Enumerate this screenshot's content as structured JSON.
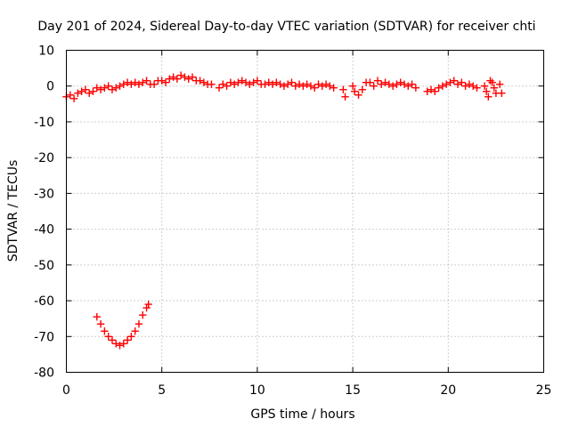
{
  "chart_data": {
    "type": "scatter",
    "title": "Day 201 of 2024, Sidereal Day-to-day VTEC variation (SDTVAR) for receiver chti",
    "xlabel": "GPS time / hours",
    "ylabel": "SDTVAR / TECUs",
    "xlim": [
      0,
      25
    ],
    "ylim": [
      -80,
      10
    ],
    "xticks": [
      0,
      5,
      10,
      15,
      20,
      25
    ],
    "yticks": [
      10,
      0,
      -10,
      -20,
      -30,
      -40,
      -50,
      -60,
      -70,
      -80
    ],
    "grid": true,
    "marker": "plus",
    "color": "#ff0000",
    "series": [
      {
        "points": [
          [
            0.0,
            -3
          ],
          [
            0.2,
            -2.5
          ],
          [
            0.4,
            -3.5
          ],
          [
            0.6,
            -2
          ],
          [
            0.8,
            -1.5
          ],
          [
            1.0,
            -1
          ],
          [
            1.2,
            -2
          ],
          [
            1.4,
            -1.5
          ],
          [
            1.6,
            -0.5
          ],
          [
            1.8,
            -1
          ],
          [
            2.0,
            -0.5
          ],
          [
            2.2,
            0
          ],
          [
            2.4,
            -1
          ],
          [
            2.6,
            -0.5
          ],
          [
            2.8,
            0
          ],
          [
            3.0,
            0.5
          ],
          [
            3.2,
            1
          ],
          [
            3.4,
            0.5
          ],
          [
            3.6,
            1
          ],
          [
            3.8,
            0.5
          ],
          [
            4.0,
            1
          ],
          [
            4.2,
            1.5
          ],
          [
            4.4,
            0.5
          ],
          [
            4.6,
            0.5
          ],
          [
            4.8,
            1.5
          ],
          [
            5.0,
            1.5
          ],
          [
            5.2,
            1
          ],
          [
            5.4,
            2
          ],
          [
            5.6,
            2.5
          ],
          [
            5.8,
            2
          ],
          [
            6.0,
            3
          ],
          [
            6.2,
            2.5
          ],
          [
            6.4,
            2
          ],
          [
            6.6,
            2.5
          ],
          [
            6.8,
            1.5
          ],
          [
            7.0,
            1.5
          ],
          [
            7.2,
            1
          ],
          [
            7.4,
            0.5
          ],
          [
            7.6,
            0.5
          ],
          [
            8.0,
            -0.5
          ],
          [
            8.2,
            0.5
          ],
          [
            8.4,
            0
          ],
          [
            8.6,
            1
          ],
          [
            8.8,
            0.5
          ],
          [
            9.0,
            1
          ],
          [
            9.2,
            1.5
          ],
          [
            9.4,
            1
          ],
          [
            9.6,
            0.5
          ],
          [
            9.8,
            1
          ],
          [
            10.0,
            1.5
          ],
          [
            10.2,
            0.5
          ],
          [
            10.4,
            0.5
          ],
          [
            10.6,
            1
          ],
          [
            10.8,
            0.5
          ],
          [
            11.0,
            1
          ],
          [
            11.2,
            0.5
          ],
          [
            11.4,
            0
          ],
          [
            11.6,
            0.5
          ],
          [
            11.8,
            1
          ],
          [
            12.0,
            0
          ],
          [
            12.2,
            0.5
          ],
          [
            12.4,
            0
          ],
          [
            12.6,
            0.5
          ],
          [
            12.8,
            0
          ],
          [
            13.0,
            -0.5
          ],
          [
            13.2,
            0.5
          ],
          [
            13.4,
            0
          ],
          [
            13.6,
            0.5
          ],
          [
            13.8,
            0
          ],
          [
            14.0,
            -0.5
          ],
          [
            14.5,
            -1
          ],
          [
            14.6,
            -3
          ],
          [
            15.0,
            0
          ],
          [
            15.1,
            -1.5
          ],
          [
            15.3,
            -2.5
          ],
          [
            15.5,
            -1
          ],
          [
            15.7,
            1
          ],
          [
            15.9,
            1
          ],
          [
            16.1,
            0
          ],
          [
            16.3,
            1.5
          ],
          [
            16.5,
            0.5
          ],
          [
            16.7,
            1
          ],
          [
            16.9,
            0.5
          ],
          [
            17.1,
            0
          ],
          [
            17.3,
            0.5
          ],
          [
            17.5,
            1
          ],
          [
            17.7,
            0.5
          ],
          [
            17.9,
            0
          ],
          [
            18.1,
            0.5
          ],
          [
            18.3,
            -0.5
          ],
          [
            18.9,
            -1.5
          ],
          [
            19.1,
            -1
          ],
          [
            19.3,
            -1.5
          ],
          [
            19.5,
            -0.5
          ],
          [
            19.7,
            0
          ],
          [
            19.9,
            0.5
          ],
          [
            20.1,
            1
          ],
          [
            20.3,
            1.5
          ],
          [
            20.5,
            0.5
          ],
          [
            20.7,
            1
          ],
          [
            20.9,
            0
          ],
          [
            21.1,
            0.5
          ],
          [
            21.3,
            0
          ],
          [
            21.5,
            -0.5
          ],
          [
            21.9,
            0
          ],
          [
            22.0,
            -1.5
          ],
          [
            22.1,
            -3
          ],
          [
            22.2,
            1.5
          ],
          [
            22.3,
            1
          ],
          [
            22.4,
            -0.5
          ],
          [
            22.5,
            -2
          ],
          [
            22.7,
            0.5
          ],
          [
            22.8,
            -2
          ],
          [
            1.6,
            -64.5
          ],
          [
            1.8,
            -66.5
          ],
          [
            2.0,
            -68.5
          ],
          [
            2.2,
            -70
          ],
          [
            2.4,
            -71
          ],
          [
            2.6,
            -72
          ],
          [
            2.8,
            -72.5
          ],
          [
            3.0,
            -72
          ],
          [
            3.2,
            -71
          ],
          [
            3.4,
            -70
          ],
          [
            3.6,
            -68.5
          ],
          [
            3.8,
            -66.5
          ],
          [
            4.0,
            -64
          ],
          [
            4.2,
            -62
          ],
          [
            4.3,
            -61
          ]
        ]
      }
    ]
  }
}
